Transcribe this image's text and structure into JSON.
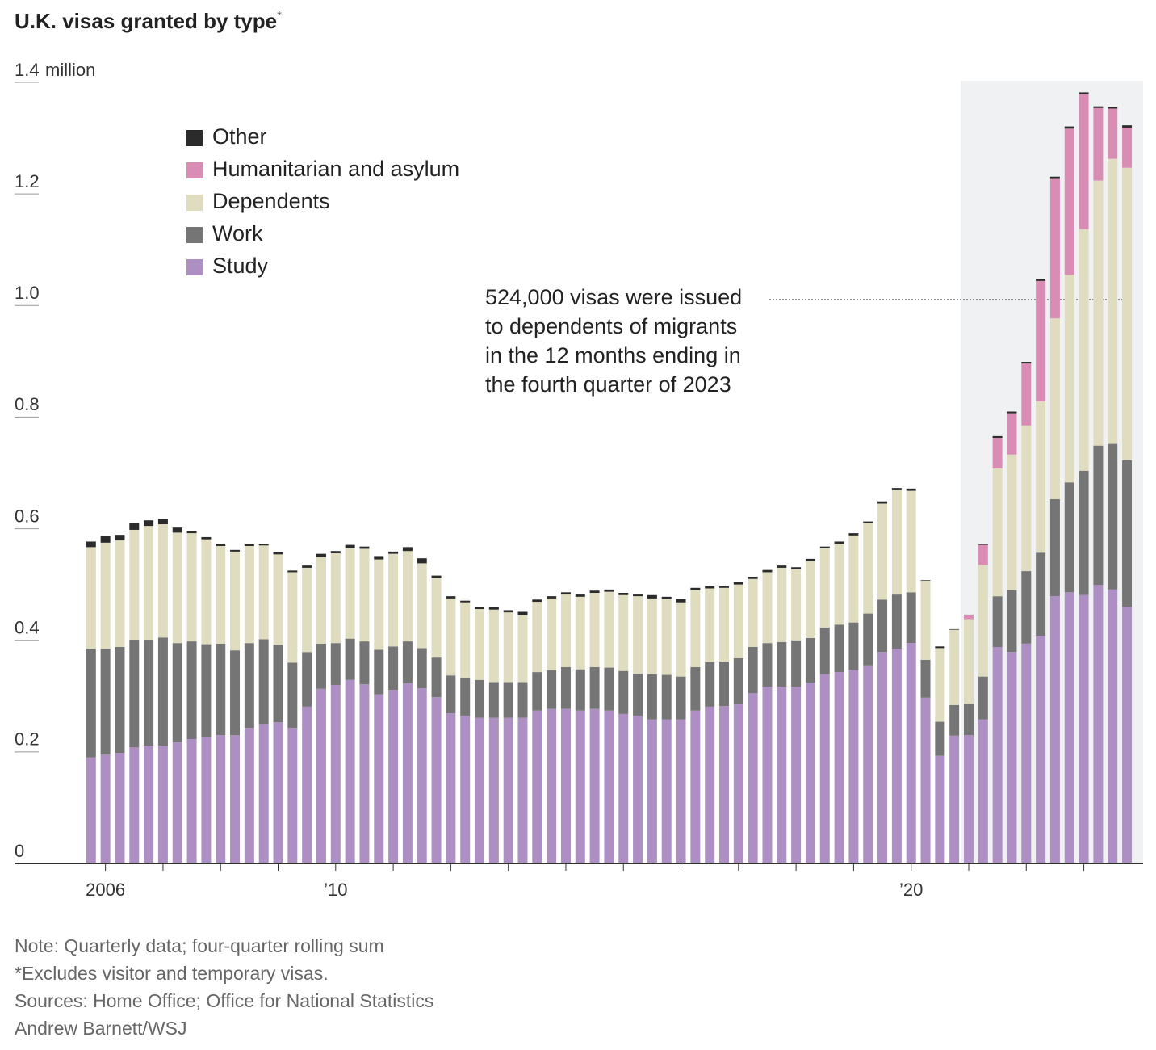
{
  "chart_data": {
    "type": "stacked-bar",
    "title": "U.K. visas granted by type",
    "title_marker": "*",
    "y_unit": "million",
    "x": [
      2005.75,
      2006,
      2006.25,
      2006.5,
      2006.75,
      2007,
      2007.25,
      2007.5,
      2007.75,
      2008,
      2008.25,
      2008.5,
      2008.75,
      2009,
      2009.25,
      2009.5,
      2009.75,
      2010,
      2010.25,
      2010.5,
      2010.75,
      2011,
      2011.25,
      2011.5,
      2011.75,
      2012,
      2012.25,
      2012.5,
      2012.75,
      2013,
      2013.25,
      2013.5,
      2013.75,
      2014,
      2014.25,
      2014.5,
      2014.75,
      2015,
      2015.25,
      2015.5,
      2015.75,
      2016,
      2016.25,
      2016.5,
      2016.75,
      2017,
      2017.25,
      2017.5,
      2017.75,
      2018,
      2018.25,
      2018.5,
      2018.75,
      2019,
      2019.25,
      2019.5,
      2019.75,
      2020,
      2020.25,
      2020.5,
      2020.75,
      2021,
      2021.25,
      2021.5,
      2021.75,
      2022,
      2022.25,
      2022.5,
      2022.75,
      2023,
      2023.25,
      2023.5,
      2023.75
    ],
    "series": [
      {
        "name": "Study",
        "color": "#ad8fc3",
        "values": [
          0.19,
          0.195,
          0.198,
          0.208,
          0.211,
          0.211,
          0.217,
          0.223,
          0.227,
          0.23,
          0.23,
          0.243,
          0.25,
          0.253,
          0.243,
          0.281,
          0.313,
          0.32,
          0.329,
          0.321,
          0.303,
          0.311,
          0.323,
          0.314,
          0.298,
          0.269,
          0.265,
          0.261,
          0.261,
          0.261,
          0.261,
          0.274,
          0.277,
          0.277,
          0.274,
          0.277,
          0.274,
          0.268,
          0.265,
          0.258,
          0.258,
          0.258,
          0.274,
          0.281,
          0.282,
          0.285,
          0.305,
          0.317,
          0.317,
          0.317,
          0.324,
          0.339,
          0.343,
          0.347,
          0.355,
          0.379,
          0.385,
          0.395,
          0.297,
          0.193,
          0.229,
          0.23,
          0.258,
          0.388,
          0.379,
          0.394,
          0.408,
          0.479,
          0.486,
          0.481,
          0.499,
          0.491,
          0.46
        ]
      },
      {
        "name": "Work",
        "color": "#757575",
        "values": [
          0.195,
          0.19,
          0.19,
          0.193,
          0.19,
          0.194,
          0.178,
          0.175,
          0.166,
          0.164,
          0.152,
          0.152,
          0.152,
          0.139,
          0.117,
          0.098,
          0.081,
          0.075,
          0.074,
          0.077,
          0.08,
          0.078,
          0.075,
          0.072,
          0.071,
          0.068,
          0.067,
          0.068,
          0.064,
          0.064,
          0.064,
          0.069,
          0.069,
          0.075,
          0.074,
          0.075,
          0.077,
          0.077,
          0.075,
          0.081,
          0.08,
          0.077,
          0.078,
          0.08,
          0.08,
          0.083,
          0.083,
          0.078,
          0.08,
          0.083,
          0.08,
          0.084,
          0.085,
          0.085,
          0.093,
          0.094,
          0.097,
          0.091,
          0.068,
          0.061,
          0.055,
          0.056,
          0.077,
          0.091,
          0.111,
          0.13,
          0.149,
          0.174,
          0.197,
          0.223,
          0.25,
          0.261,
          0.263
        ]
      },
      {
        "name": "Dependents",
        "color": "#e0dcbf",
        "values": [
          0.182,
          0.19,
          0.191,
          0.197,
          0.204,
          0.203,
          0.198,
          0.194,
          0.188,
          0.175,
          0.177,
          0.174,
          0.168,
          0.162,
          0.162,
          0.151,
          0.155,
          0.161,
          0.162,
          0.166,
          0.162,
          0.166,
          0.162,
          0.152,
          0.143,
          0.138,
          0.136,
          0.127,
          0.13,
          0.125,
          0.12,
          0.126,
          0.129,
          0.13,
          0.13,
          0.133,
          0.136,
          0.136,
          0.139,
          0.136,
          0.136,
          0.133,
          0.138,
          0.132,
          0.132,
          0.132,
          0.122,
          0.127,
          0.133,
          0.127,
          0.138,
          0.142,
          0.145,
          0.156,
          0.162,
          0.172,
          0.187,
          0.182,
          0.142,
          0.132,
          0.135,
          0.152,
          0.2,
          0.229,
          0.243,
          0.261,
          0.271,
          0.324,
          0.372,
          0.433,
          0.475,
          0.511,
          0.524
        ]
      },
      {
        "name": "Humanitarian and asylum",
        "color": "#d98db5",
        "values": [
          0,
          0,
          0,
          0,
          0,
          0,
          0,
          0,
          0,
          0,
          0,
          0,
          0,
          0,
          0,
          0,
          0,
          0,
          0,
          0,
          0,
          0,
          0,
          0,
          0,
          0,
          0,
          0,
          0,
          0,
          0,
          0,
          0,
          0,
          0,
          0,
          0,
          0,
          0,
          0,
          0,
          0,
          0,
          0,
          0,
          0,
          0,
          0,
          0,
          0,
          0,
          0,
          0,
          0,
          0,
          0,
          0,
          0,
          0,
          0,
          0,
          0.007,
          0.036,
          0.055,
          0.074,
          0.111,
          0.216,
          0.25,
          0.262,
          0.242,
          0.13,
          0.09,
          0.072
        ]
      },
      {
        "name": "Other",
        "color": "#2b2b2b",
        "values": [
          0.01,
          0.012,
          0.01,
          0.012,
          0.01,
          0.01,
          0.009,
          0.004,
          0.004,
          0.004,
          0.003,
          0.003,
          0.003,
          0.004,
          0.003,
          0.004,
          0.006,
          0.004,
          0.006,
          0.004,
          0.006,
          0.004,
          0.007,
          0.009,
          0.004,
          0.004,
          0.003,
          0.003,
          0.004,
          0.004,
          0.006,
          0.004,
          0.004,
          0.004,
          0.004,
          0.004,
          0.004,
          0.004,
          0.003,
          0.006,
          0.004,
          0.006,
          0.004,
          0.004,
          0.003,
          0.004,
          0.004,
          0.004,
          0.004,
          0.004,
          0.004,
          0.003,
          0.004,
          0.004,
          0.003,
          0.004,
          0.004,
          0.004,
          0.001,
          0.003,
          0.001,
          0.001,
          0.001,
          0.003,
          0.003,
          0.003,
          0.004,
          0.004,
          0.004,
          0.003,
          0.003,
          0.003,
          0.004
        ]
      }
    ],
    "xlim": [
      2004.42,
      2024.03
    ],
    "xticks": [
      {
        "value": 2006,
        "label": "2006"
      },
      {
        "value": 2010,
        "label": "’10"
      },
      {
        "value": 2020,
        "label": "’20"
      }
    ],
    "xminor_ticks": [
      2007,
      2008,
      2009,
      2011,
      2012,
      2013,
      2014,
      2015,
      2016,
      2017,
      2018,
      2019,
      2021,
      2022,
      2023
    ],
    "ylim": [
      0,
      1.4
    ],
    "yticks": [
      0,
      0.2,
      0.4,
      0.6,
      0.8,
      {
        "value": 1.0,
        "label": "1.0"
      },
      1.2,
      1.4
    ],
    "legend": "top-left",
    "annotation": [
      "524,000 visas were issued",
      "to dependents of migrants",
      "in the 12 months ending in",
      "the fourth quarter of 2023"
    ],
    "notes": [
      "Note: Quarterly data; four-quarter rolling sum",
      "*Excludes visitor and temporary visas.",
      "Sources: Home Office; Office for National Statistics",
      "Andrew Barnett/WSJ"
    ]
  }
}
